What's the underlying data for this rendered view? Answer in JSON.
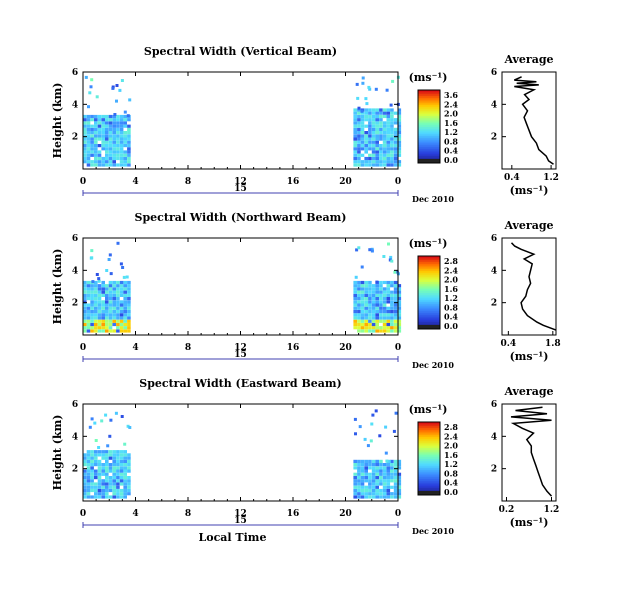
{
  "chart_data": [
    {
      "type": "heatmap",
      "title": "Spectral Width (Vertical Beam)",
      "ylabel": "Height (km)",
      "ylim": [
        0,
        6
      ],
      "yticks": [
        "6",
        "4",
        "2"
      ],
      "xlim": [
        0,
        24
      ],
      "xticks": [
        "0",
        "4",
        "8",
        "12",
        "16",
        "20",
        "0"
      ],
      "colorbar": {
        "unit": "(ms⁻¹)",
        "ticks": [
          "3.6",
          "2.4",
          "2.0",
          "1.6",
          "1.2",
          "0.8",
          "0.4",
          "0.0"
        ]
      },
      "date_axis": {
        "label": "15",
        "suffix": "Dec 2010"
      },
      "data_blocks": [
        {
          "t_start": 0,
          "t_end": 3.5,
          "h_top": 3.2
        },
        {
          "t_start": 20.6,
          "t_end": 24,
          "h_top": 3.6
        }
      ],
      "average": {
        "title": "Average",
        "xlabel": "(ms⁻¹)",
        "xticks": [
          "0.4",
          "1.2"
        ],
        "xlim": [
          0.2,
          1.3
        ],
        "yticks": [
          "6",
          "4",
          "2"
        ],
        "ylim": [
          0,
          6
        ],
        "profile": [
          [
            1.25,
            0.3
          ],
          [
            1.15,
            0.5
          ],
          [
            1.1,
            0.8
          ],
          [
            0.95,
            1.2
          ],
          [
            0.9,
            1.6
          ],
          [
            0.8,
            2.0
          ],
          [
            0.75,
            2.4
          ],
          [
            0.7,
            2.8
          ],
          [
            0.65,
            3.2
          ],
          [
            0.72,
            3.6
          ],
          [
            0.62,
            4.0
          ],
          [
            0.75,
            4.3
          ],
          [
            0.66,
            4.6
          ],
          [
            0.85,
            4.9
          ],
          [
            0.45,
            5.1
          ],
          [
            0.95,
            5.2
          ],
          [
            0.5,
            5.3
          ],
          [
            0.9,
            5.4
          ],
          [
            0.45,
            5.5
          ],
          [
            0.6,
            5.7
          ]
        ]
      }
    },
    {
      "type": "heatmap",
      "title": "Spectral Width (Northward Beam)",
      "ylabel": "Height (km)",
      "ylim": [
        0,
        6
      ],
      "yticks": [
        "6",
        "4",
        "2"
      ],
      "xlim": [
        0,
        24
      ],
      "xticks": [
        "0",
        "4",
        "8",
        "12",
        "16",
        "20",
        "0"
      ],
      "colorbar": {
        "unit": "(ms⁻¹)",
        "ticks": [
          "2.8",
          "2.4",
          "2.0",
          "1.6",
          "1.2",
          "0.8",
          "0.4",
          "0.0"
        ]
      },
      "date_axis": {
        "label": "15",
        "suffix": "Dec 2010"
      },
      "data_blocks": [
        {
          "t_start": 0,
          "t_end": 3.5,
          "h_top": 3.3
        },
        {
          "t_start": 20.6,
          "t_end": 24,
          "h_top": 3.3
        }
      ],
      "average": {
        "title": "Average",
        "xlabel": "(ms⁻¹)",
        "xticks": [
          "0.4",
          "1.8"
        ],
        "xlim": [
          0.2,
          1.9
        ],
        "yticks": [
          "6",
          "4",
          "2"
        ],
        "ylim": [
          0,
          6
        ],
        "profile": [
          [
            1.9,
            0.3
          ],
          [
            1.5,
            0.6
          ],
          [
            1.3,
            0.8
          ],
          [
            1.0,
            1.2
          ],
          [
            0.85,
            1.6
          ],
          [
            0.8,
            2.0
          ],
          [
            0.95,
            2.4
          ],
          [
            1.0,
            2.8
          ],
          [
            1.1,
            3.2
          ],
          [
            1.05,
            3.6
          ],
          [
            1.1,
            4.0
          ],
          [
            1.15,
            4.4
          ],
          [
            0.9,
            4.7
          ],
          [
            1.2,
            5.0
          ],
          [
            0.8,
            5.3
          ],
          [
            0.6,
            5.5
          ],
          [
            0.5,
            5.7
          ]
        ]
      }
    },
    {
      "type": "heatmap",
      "title": "Spectral Width (Eastward Beam)",
      "ylabel": "Height (km)",
      "ylim": [
        0,
        6
      ],
      "yticks": [
        "6",
        "4",
        "2"
      ],
      "xlim": [
        0,
        24
      ],
      "xticks": [
        "0",
        "4",
        "8",
        "12",
        "16",
        "20",
        "0"
      ],
      "xlabel": "Local Time",
      "colorbar": {
        "unit": "(ms⁻¹)",
        "ticks": [
          "2.8",
          "2.4",
          "2.0",
          "1.6",
          "1.2",
          "0.8",
          "0.4",
          "0.0"
        ]
      },
      "date_axis": {
        "label": "15",
        "suffix": "Dec 2010"
      },
      "data_blocks": [
        {
          "t_start": 0,
          "t_end": 3.5,
          "h_top": 3.0
        },
        {
          "t_start": 20.6,
          "t_end": 24,
          "h_top": 2.4
        }
      ],
      "average": {
        "title": "Average",
        "xlabel": "(ms⁻¹)",
        "xticks": [
          "0.2",
          "1.2"
        ],
        "xlim": [
          0.1,
          1.3
        ],
        "yticks": [
          "6",
          "4",
          "2"
        ],
        "ylim": [
          0,
          6
        ],
        "profile": [
          [
            1.2,
            0.3
          ],
          [
            1.1,
            0.6
          ],
          [
            1.0,
            1.0
          ],
          [
            0.95,
            1.4
          ],
          [
            0.9,
            1.8
          ],
          [
            0.85,
            2.2
          ],
          [
            0.8,
            2.6
          ],
          [
            0.75,
            3.0
          ],
          [
            0.75,
            3.4
          ],
          [
            0.65,
            3.8
          ],
          [
            0.8,
            4.2
          ],
          [
            0.55,
            4.5
          ],
          [
            0.35,
            4.8
          ],
          [
            1.2,
            5.0
          ],
          [
            0.3,
            5.2
          ],
          [
            1.1,
            5.4
          ],
          [
            0.4,
            5.6
          ],
          [
            1.0,
            5.8
          ]
        ]
      }
    }
  ]
}
